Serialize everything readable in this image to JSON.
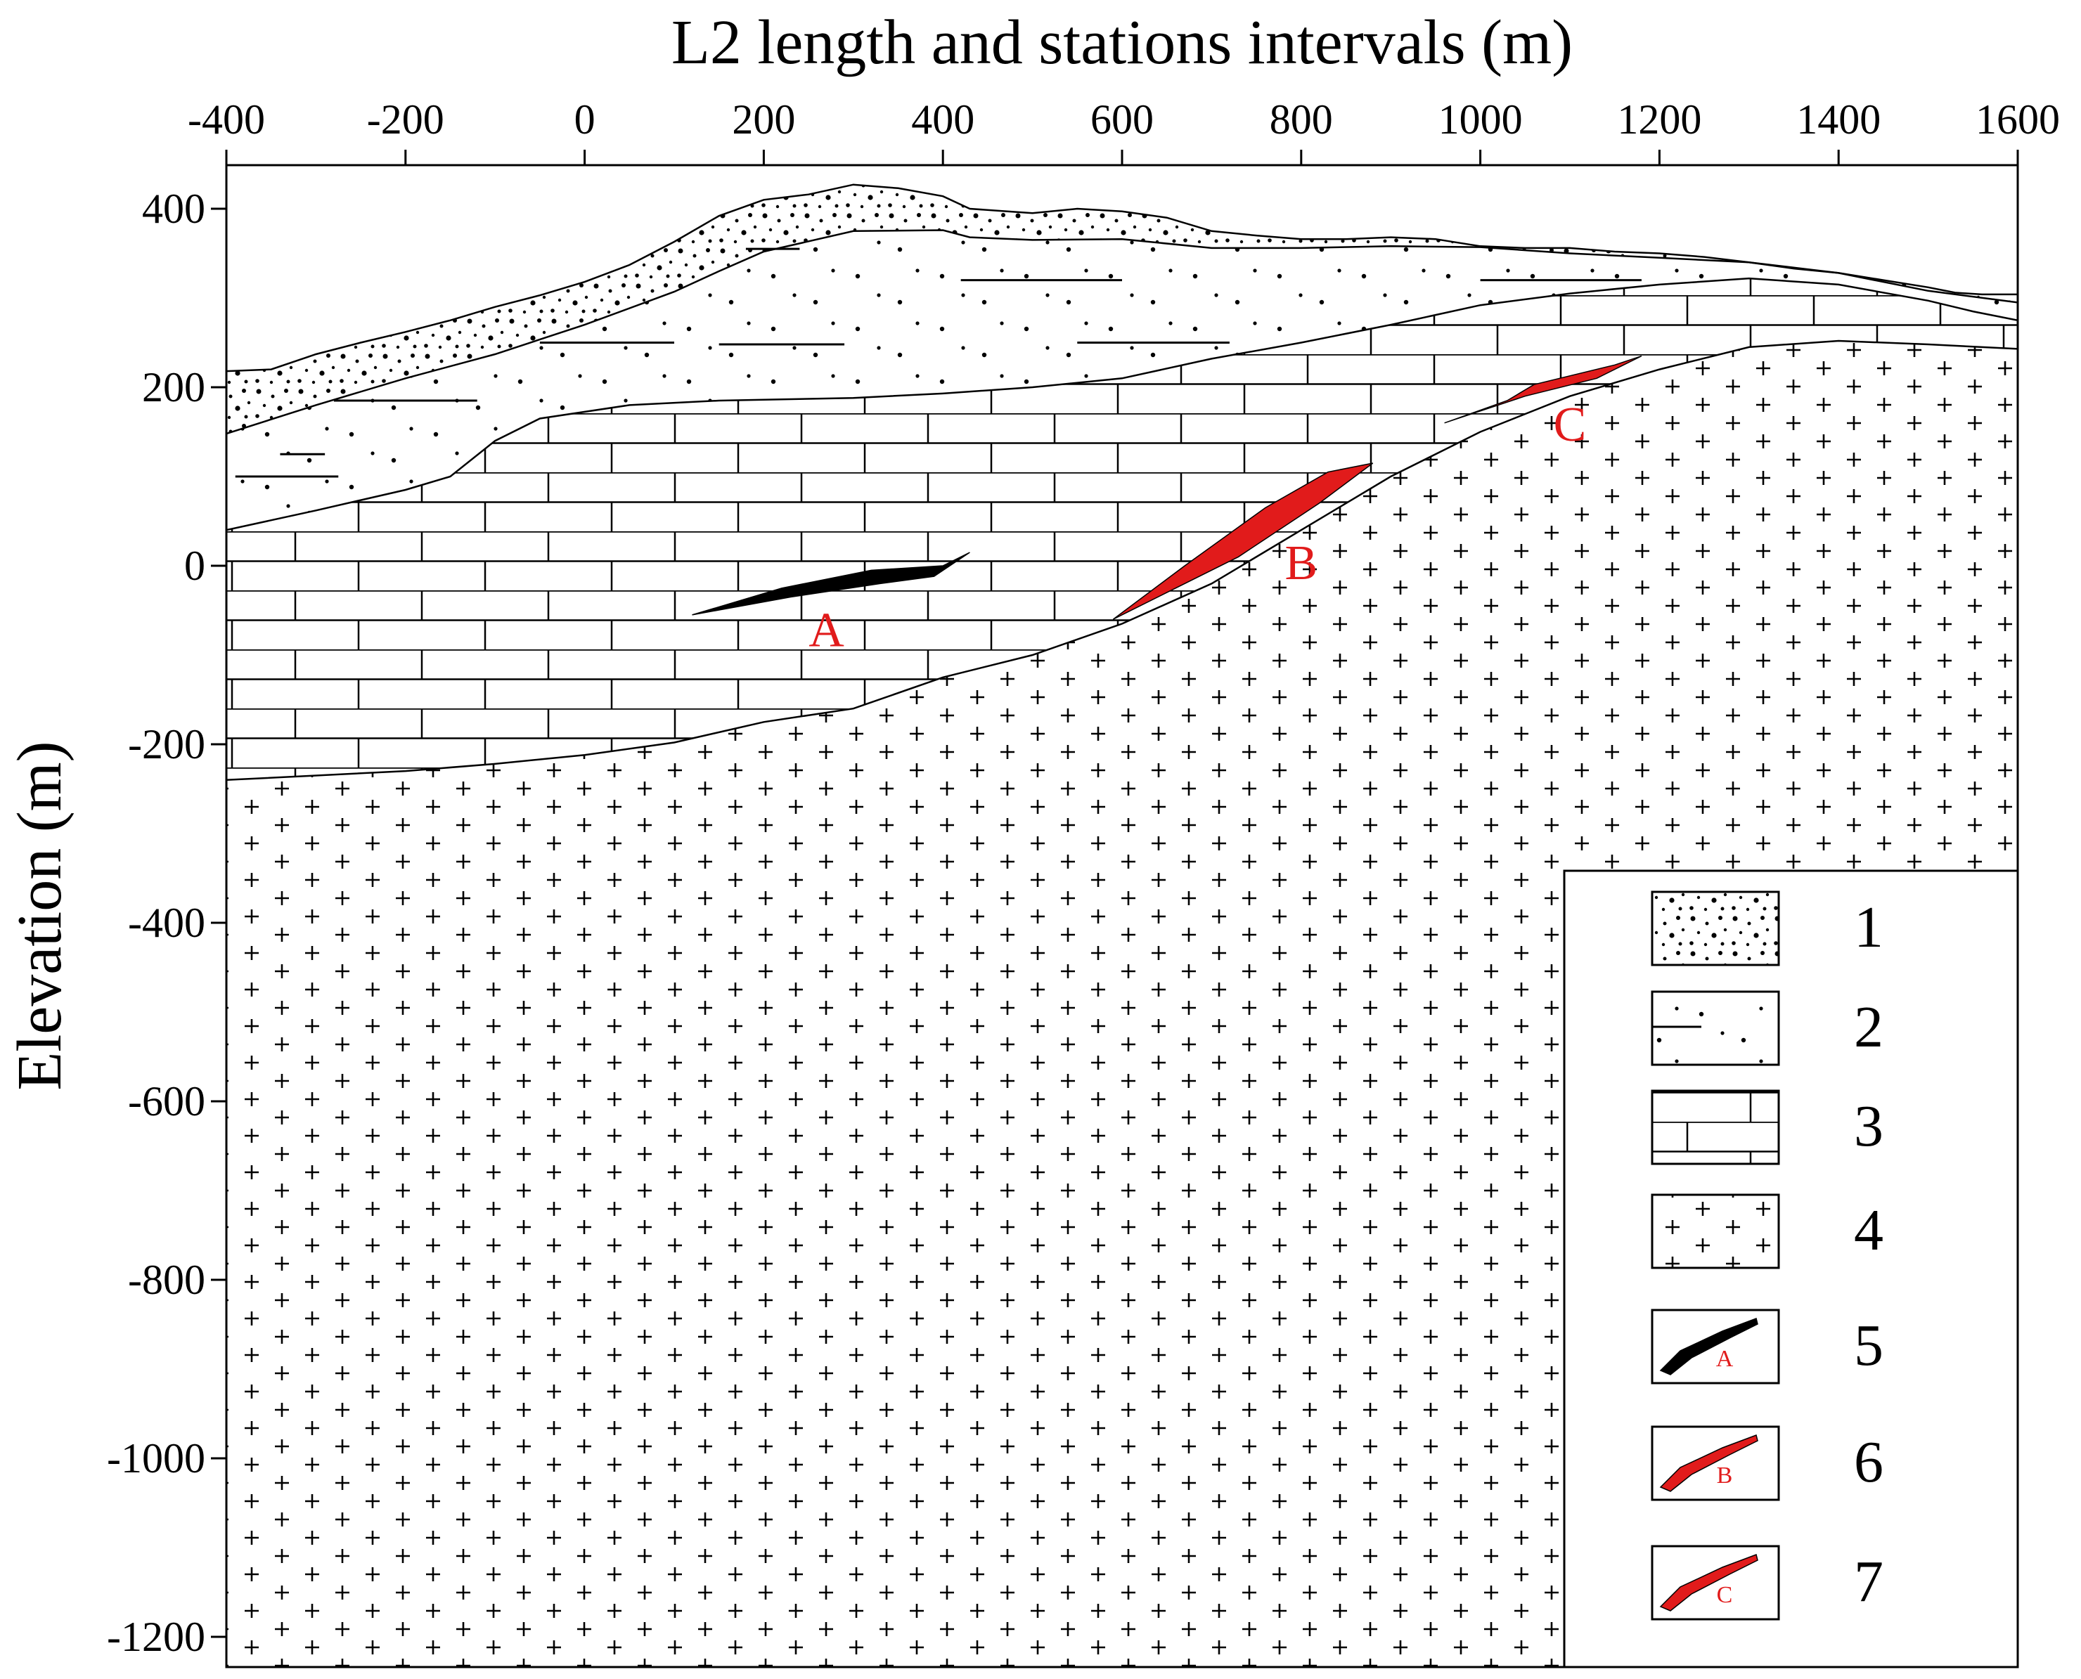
{
  "figure": {
    "x_axis_title": "L2 length and stations intervals (m)",
    "y_axis_title": "Elevation (m)"
  },
  "chart_data": {
    "type": "geologic cross-section",
    "x_ticks": [
      -400,
      -200,
      0,
      200,
      400,
      600,
      800,
      1000,
      1200,
      1400,
      1600
    ],
    "y_ticks": [
      400,
      200,
      0,
      -200,
      -400,
      -600,
      -800,
      -1000,
      -1200
    ],
    "xlim": [
      -400,
      1600
    ],
    "ylim": [
      -1220,
      450
    ],
    "surfaces": {
      "topography": [
        [
          -400,
          218
        ],
        [
          -350,
          220
        ],
        [
          -300,
          237
        ],
        [
          -250,
          250
        ],
        [
          -200,
          262
        ],
        [
          -150,
          275
        ],
        [
          -100,
          290
        ],
        [
          -50,
          303
        ],
        [
          0,
          318
        ],
        [
          50,
          337
        ],
        [
          100,
          363
        ],
        [
          150,
          392
        ],
        [
          200,
          410
        ],
        [
          250,
          416
        ],
        [
          300,
          427
        ],
        [
          350,
          423
        ],
        [
          400,
          414
        ],
        [
          430,
          400
        ],
        [
          500,
          395
        ],
        [
          550,
          400
        ],
        [
          600,
          397
        ],
        [
          650,
          390
        ],
        [
          700,
          375
        ],
        [
          750,
          370
        ],
        [
          800,
          366
        ],
        [
          850,
          366
        ],
        [
          900,
          368
        ],
        [
          950,
          366
        ],
        [
          1000,
          358
        ],
        [
          1050,
          356
        ],
        [
          1100,
          356
        ],
        [
          1150,
          352
        ],
        [
          1200,
          350
        ],
        [
          1250,
          346
        ],
        [
          1300,
          340
        ],
        [
          1350,
          333
        ],
        [
          1400,
          328
        ],
        [
          1450,
          320
        ],
        [
          1500,
          312
        ],
        [
          1530,
          306
        ],
        [
          1560,
          304
        ],
        [
          1600,
          304
        ]
      ],
      "sand_top": [
        [
          -400,
          148
        ],
        [
          -300,
          180
        ],
        [
          -200,
          210
        ],
        [
          -100,
          237
        ],
        [
          0,
          270
        ],
        [
          100,
          307
        ],
        [
          150,
          330
        ],
        [
          200,
          352
        ],
        [
          300,
          375
        ],
        [
          400,
          376
        ],
        [
          430,
          368
        ],
        [
          500,
          365
        ],
        [
          600,
          366
        ],
        [
          700,
          356
        ],
        [
          800,
          356
        ],
        [
          900,
          358
        ],
        [
          1000,
          357
        ],
        [
          1100,
          350
        ],
        [
          1200,
          345
        ],
        [
          1300,
          340
        ],
        [
          1400,
          328
        ],
        [
          1500,
          308
        ],
        [
          1600,
          295
        ]
      ],
      "limestone_top": [
        [
          -400,
          40
        ],
        [
          -300,
          62
        ],
        [
          -200,
          85
        ],
        [
          -150,
          100
        ],
        [
          -100,
          140
        ],
        [
          -50,
          165
        ],
        [
          50,
          180
        ],
        [
          150,
          185
        ],
        [
          300,
          188
        ],
        [
          400,
          193
        ],
        [
          500,
          200
        ],
        [
          600,
          210
        ],
        [
          700,
          232
        ],
        [
          800,
          250
        ],
        [
          900,
          270
        ],
        [
          1000,
          292
        ],
        [
          1100,
          305
        ],
        [
          1200,
          315
        ],
        [
          1300,
          322
        ],
        [
          1400,
          315
        ],
        [
          1500,
          297
        ],
        [
          1550,
          285
        ],
        [
          1600,
          275
        ]
      ],
      "granite_top": [
        [
          -400,
          -240
        ],
        [
          -300,
          -235
        ],
        [
          -200,
          -230
        ],
        [
          -100,
          -222
        ],
        [
          0,
          -212
        ],
        [
          100,
          -198
        ],
        [
          200,
          -175
        ],
        [
          300,
          -160
        ],
        [
          400,
          -125
        ],
        [
          500,
          -100
        ],
        [
          600,
          -65
        ],
        [
          700,
          -20
        ],
        [
          800,
          40
        ],
        [
          900,
          100
        ],
        [
          1000,
          150
        ],
        [
          1100,
          190
        ],
        [
          1200,
          220
        ],
        [
          1300,
          245
        ],
        [
          1400,
          252
        ],
        [
          1500,
          248
        ],
        [
          1600,
          243
        ]
      ]
    },
    "dashes_sand": [
      [
        -390,
        -275,
        100
      ],
      [
        -280,
        -120,
        185
      ],
      [
        -340,
        -290,
        125
      ],
      [
        -50,
        100,
        250
      ],
      [
        150,
        290,
        248
      ],
      [
        550,
        720,
        250
      ],
      [
        420,
        600,
        320
      ],
      [
        1000,
        1180,
        320
      ],
      [
        180,
        240,
        355
      ]
    ],
    "bodies": [
      {
        "label": "A",
        "color": "#000000",
        "outline": [
          [
            120,
            -55
          ],
          [
            230,
            -35
          ],
          [
            330,
            -20
          ],
          [
            390,
            -12
          ],
          [
            430,
            15
          ],
          [
            400,
            0
          ],
          [
            320,
            -5
          ],
          [
            220,
            -25
          ],
          [
            120,
            -55
          ]
        ],
        "label_pos": [
          270,
          -90
        ]
      },
      {
        "label": "B",
        "color": "#e11b1b",
        "outline": [
          [
            590,
            -60
          ],
          [
            670,
            0
          ],
          [
            760,
            65
          ],
          [
            830,
            105
          ],
          [
            880,
            115
          ],
          [
            820,
            70
          ],
          [
            730,
            10
          ],
          [
            650,
            -30
          ],
          [
            590,
            -60
          ]
        ],
        "label_pos": [
          800,
          -15
        ]
      },
      {
        "label": "C",
        "color": "#e11b1b",
        "outline": [
          [
            960,
            160
          ],
          [
            1030,
            185
          ],
          [
            1060,
            203
          ],
          [
            1150,
            225
          ],
          [
            1180,
            235
          ],
          [
            1130,
            210
          ],
          [
            1050,
            190
          ],
          [
            990,
            170
          ],
          [
            960,
            160
          ]
        ],
        "label_pos": [
          1100,
          140
        ]
      }
    ]
  },
  "legend": {
    "items": [
      {
        "number": "1",
        "pattern": "coarse-sand-icon"
      },
      {
        "number": "2",
        "pattern": "dotted-sand-icon"
      },
      {
        "number": "3",
        "pattern": "limestone-icon"
      },
      {
        "number": "4",
        "pattern": "granite-icon"
      },
      {
        "number": "5",
        "pattern": "orebody-a-icon",
        "letter": "A",
        "color": "#000000"
      },
      {
        "number": "6",
        "pattern": "orebody-b-icon",
        "letter": "B",
        "color": "#e11b1b"
      },
      {
        "number": "7",
        "pattern": "orebody-c-icon",
        "letter": "C",
        "color": "#e11b1b"
      }
    ]
  }
}
